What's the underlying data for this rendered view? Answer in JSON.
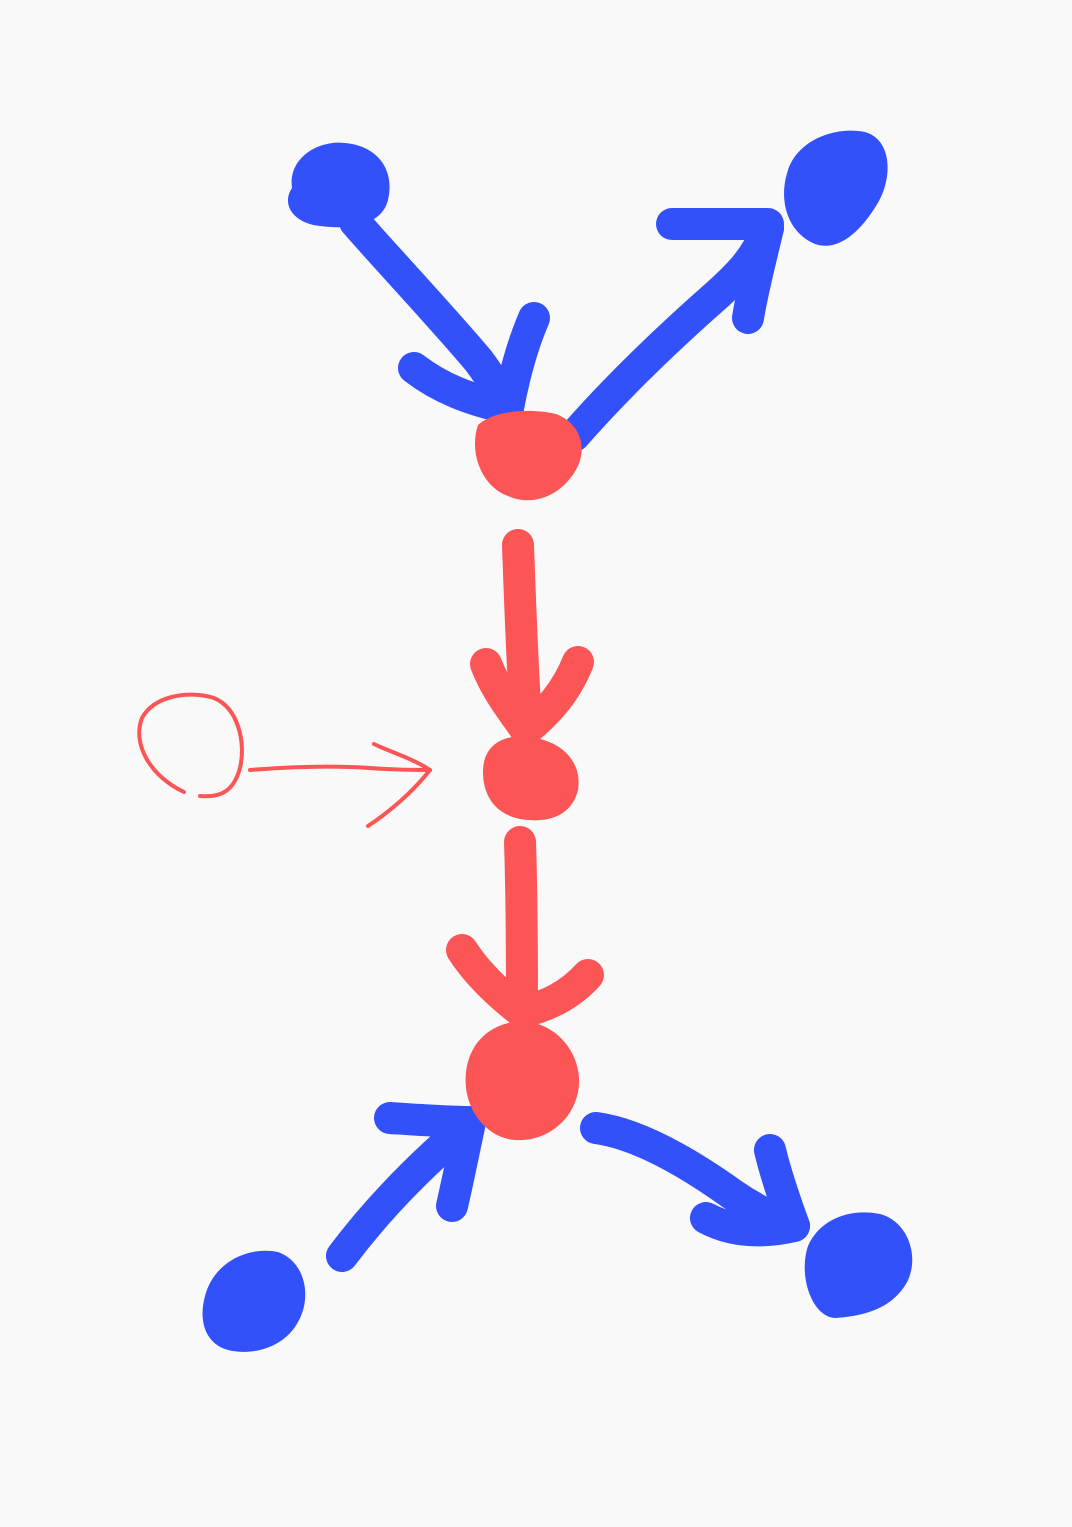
{
  "colors": {
    "background": "#f9f9fa",
    "blue": "#3351fb",
    "red": "#fb5555"
  },
  "diagram": {
    "nodes": [
      {
        "id": "top-left-blue-node",
        "color": "blue",
        "kind": "filled"
      },
      {
        "id": "top-right-blue-node",
        "color": "blue",
        "kind": "filled"
      },
      {
        "id": "upper-red-node",
        "color": "red",
        "kind": "filled"
      },
      {
        "id": "middle-red-node",
        "color": "red",
        "kind": "filled"
      },
      {
        "id": "lower-red-node",
        "color": "red",
        "kind": "filled"
      },
      {
        "id": "bottom-left-blue-node",
        "color": "blue",
        "kind": "filled"
      },
      {
        "id": "bottom-right-blue-node",
        "color": "blue",
        "kind": "filled"
      },
      {
        "id": "outlined-red-node",
        "color": "red",
        "kind": "outline"
      }
    ],
    "edges": [
      {
        "id": "edge-top-left-to-upper-red",
        "from": "top-left-blue-node",
        "to": "upper-red-node",
        "color": "blue"
      },
      {
        "id": "edge-upper-red-to-top-right",
        "from": "upper-red-node",
        "to": "top-right-blue-node",
        "color": "blue"
      },
      {
        "id": "edge-upper-red-to-middle-red",
        "from": "upper-red-node",
        "to": "middle-red-node",
        "color": "red"
      },
      {
        "id": "edge-outlined-to-middle-red",
        "from": "outlined-red-node",
        "to": "middle-red-node",
        "color": "red",
        "thin": true
      },
      {
        "id": "edge-middle-red-to-lower-red",
        "from": "middle-red-node",
        "to": "lower-red-node",
        "color": "red"
      },
      {
        "id": "edge-bottom-left-to-lower-red",
        "from": "bottom-left-blue-node",
        "to": "lower-red-node",
        "color": "blue"
      },
      {
        "id": "edge-lower-red-to-bottom-right",
        "from": "lower-red-node",
        "to": "bottom-right-blue-node",
        "color": "blue"
      }
    ]
  }
}
